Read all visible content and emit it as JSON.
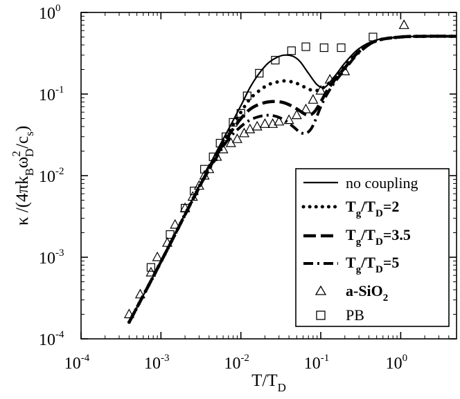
{
  "chart_data": {
    "type": "line",
    "title": "",
    "xscale": "log",
    "yscale": "log",
    "xlim": [
      0.0001,
      5
    ],
    "ylim": [
      0.0001,
      1
    ],
    "grid": false,
    "legend_position": "bottom-right",
    "xlabel": {
      "main": "T/T",
      "sub": "D"
    },
    "ylabel": {
      "prefix": "κ /(4πk",
      "sub1": "B",
      "mid": "ω",
      "sup": "2",
      "sub2": "D",
      "mid2": "/c",
      "sub3": "s",
      "suffix": ")"
    },
    "x_ticks": [
      {
        "value": 0.0001,
        "base": "10",
        "exp": "-4"
      },
      {
        "value": 0.001,
        "base": "10",
        "exp": "-3"
      },
      {
        "value": 0.01,
        "base": "10",
        "exp": "-2"
      },
      {
        "value": 0.1,
        "base": "10",
        "exp": "-1"
      },
      {
        "value": 1,
        "base": "10",
        "exp": "0"
      }
    ],
    "y_ticks": [
      {
        "value": 0.0001,
        "base": "10",
        "exp": "-4"
      },
      {
        "value": 0.001,
        "base": "10",
        "exp": "-3"
      },
      {
        "value": 0.01,
        "base": "10",
        "exp": "-2"
      },
      {
        "value": 0.1,
        "base": "10",
        "exp": "-1"
      },
      {
        "value": 1,
        "base": "10",
        "exp": "0"
      }
    ],
    "series": [
      {
        "name": "no coupling",
        "style": "solid",
        "x": [
          0.0004,
          0.0006,
          0.001,
          0.002,
          0.003,
          0.005,
          0.007,
          0.01,
          0.013,
          0.017,
          0.022,
          0.028,
          0.035,
          0.045,
          0.055,
          0.07,
          0.09,
          0.11,
          0.13,
          0.16,
          0.2,
          0.3,
          0.5,
          1,
          2,
          5
        ],
        "y": [
          0.00016,
          0.00034,
          0.00088,
          0.0034,
          0.0074,
          0.02,
          0.037,
          0.072,
          0.12,
          0.18,
          0.24,
          0.28,
          0.3,
          0.29,
          0.25,
          0.18,
          0.13,
          0.12,
          0.14,
          0.18,
          0.24,
          0.36,
          0.46,
          0.5,
          0.51,
          0.51
        ]
      },
      {
        "name": {
          "main": "T",
          "sub1": "g",
          "mid": "/T",
          "sub2": "D",
          "suffix": "=2"
        },
        "style": "dotted",
        "x": [
          0.0004,
          0.001,
          0.003,
          0.005,
          0.007,
          0.01,
          0.013,
          0.017,
          0.022,
          0.028,
          0.035,
          0.045,
          0.055,
          0.07,
          0.085,
          0.1,
          0.12,
          0.15,
          0.2,
          0.3,
          0.5,
          1,
          2,
          5
        ],
        "y": [
          0.00016,
          0.00088,
          0.0073,
          0.019,
          0.034,
          0.06,
          0.087,
          0.11,
          0.13,
          0.14,
          0.145,
          0.14,
          0.13,
          0.115,
          0.11,
          0.115,
          0.13,
          0.16,
          0.22,
          0.33,
          0.45,
          0.5,
          0.51,
          0.51
        ]
      },
      {
        "name": {
          "main": "T",
          "sub1": "g",
          "mid": "/T",
          "sub2": "D",
          "suffix": "=3.5"
        },
        "style": "dashed",
        "x": [
          0.0004,
          0.001,
          0.003,
          0.005,
          0.007,
          0.01,
          0.013,
          0.017,
          0.022,
          0.028,
          0.035,
          0.045,
          0.055,
          0.065,
          0.075,
          0.085,
          0.1,
          0.12,
          0.15,
          0.2,
          0.3,
          0.5,
          1,
          2,
          5
        ],
        "y": [
          0.00016,
          0.00088,
          0.0072,
          0.018,
          0.031,
          0.05,
          0.065,
          0.075,
          0.08,
          0.081,
          0.078,
          0.07,
          0.062,
          0.056,
          0.056,
          0.062,
          0.08,
          0.11,
          0.15,
          0.21,
          0.33,
          0.45,
          0.5,
          0.51,
          0.51
        ]
      },
      {
        "name": {
          "main": "T",
          "sub1": "g",
          "mid": "/T",
          "sub2": "D",
          "suffix": "=5"
        },
        "style": "dashdot",
        "x": [
          0.0004,
          0.001,
          0.003,
          0.005,
          0.007,
          0.01,
          0.013,
          0.017,
          0.022,
          0.028,
          0.035,
          0.045,
          0.055,
          0.065,
          0.075,
          0.085,
          0.1,
          0.12,
          0.15,
          0.2,
          0.3,
          0.5,
          1,
          2,
          5
        ],
        "y": [
          0.00016,
          0.00088,
          0.0071,
          0.017,
          0.028,
          0.04,
          0.048,
          0.053,
          0.055,
          0.053,
          0.048,
          0.04,
          0.034,
          0.033,
          0.037,
          0.047,
          0.07,
          0.1,
          0.14,
          0.2,
          0.32,
          0.45,
          0.5,
          0.51,
          0.51
        ]
      },
      {
        "name": {
          "main": "a-SiO",
          "sub": "2"
        },
        "style": "triangle",
        "x": [
          0.0004,
          0.00055,
          0.00075,
          0.0009,
          0.0012,
          0.0015,
          0.002,
          0.0025,
          0.003,
          0.0035,
          0.004,
          0.005,
          0.006,
          0.0075,
          0.009,
          0.011,
          0.013,
          0.016,
          0.02,
          0.025,
          0.03,
          0.04,
          0.05,
          0.065,
          0.08,
          0.1,
          0.13,
          0.2,
          1.1
        ],
        "y": [
          0.0002,
          0.00035,
          0.00065,
          0.001,
          0.0015,
          0.0025,
          0.004,
          0.0055,
          0.0075,
          0.01,
          0.012,
          0.017,
          0.021,
          0.025,
          0.028,
          0.033,
          0.037,
          0.04,
          0.043,
          0.043,
          0.046,
          0.048,
          0.055,
          0.065,
          0.085,
          0.11,
          0.15,
          0.19,
          0.7
        ]
      },
      {
        "name": "PB",
        "style": "square",
        "x": [
          0.00075,
          0.0013,
          0.002,
          0.0026,
          0.0035,
          0.0045,
          0.0055,
          0.0065,
          0.008,
          0.01,
          0.012,
          0.017,
          0.027,
          0.043,
          0.065,
          0.11,
          0.18,
          0.45
        ],
        "y": [
          0.00075,
          0.0019,
          0.004,
          0.0065,
          0.012,
          0.017,
          0.025,
          0.03,
          0.045,
          0.058,
          0.095,
          0.18,
          0.26,
          0.34,
          0.38,
          0.37,
          0.37,
          0.5
        ]
      }
    ]
  }
}
